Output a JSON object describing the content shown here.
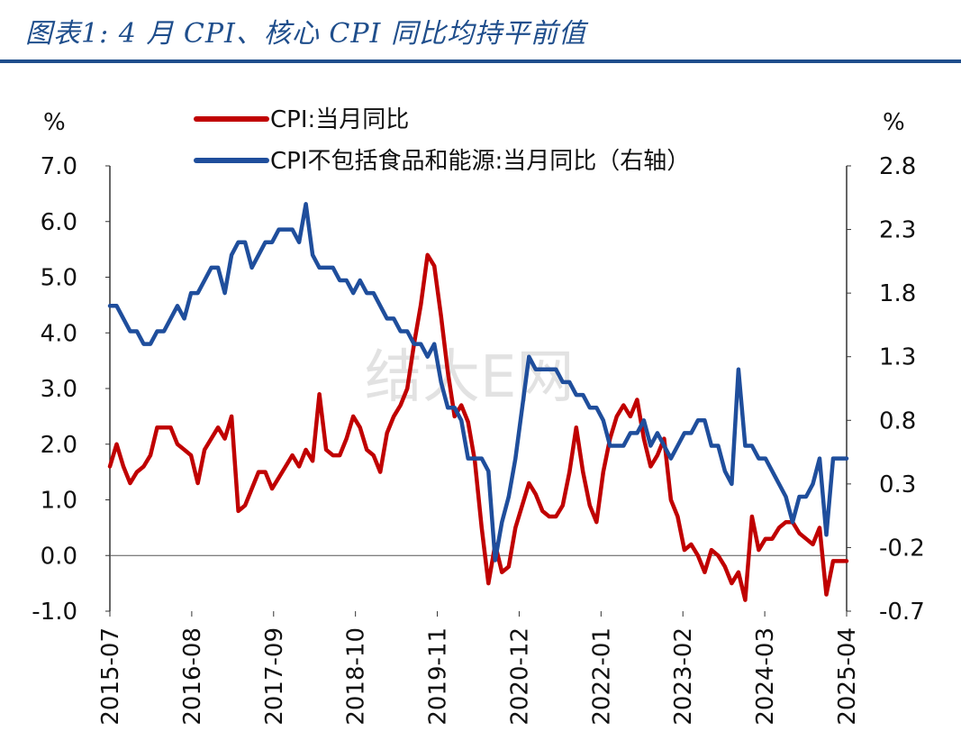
{
  "figure": {
    "title": "图表1:  4 月 CPI、核心 CPI 同比均持平前值",
    "watermark": "结大E网"
  },
  "colors": {
    "cpi": "#c00000",
    "core": "#1f4e9c",
    "title": "#1f4e8c"
  },
  "chart_data": {
    "type": "line",
    "left_axis": {
      "unit": "%",
      "ticks": [
        "7.0",
        "6.0",
        "5.0",
        "4.0",
        "3.0",
        "2.0",
        "1.0",
        "0.0",
        "-1.0"
      ],
      "ylim": [
        -1.0,
        7.0
      ]
    },
    "right_axis": {
      "unit": "%",
      "ticks": [
        "2.8",
        "2.3",
        "1.8",
        "1.3",
        "0.8",
        "0.3",
        "-0.2",
        "-0.7"
      ],
      "ylim": [
        -0.7,
        2.8
      ]
    },
    "x_ticks": [
      "2015-07",
      "2016-08",
      "2017-09",
      "2018-10",
      "2019-11",
      "2020-12",
      "2022-01",
      "2023-02",
      "2024-03",
      "2025-04"
    ],
    "x_start": "2015-07",
    "series": [
      {
        "name": "CPI:当月同比",
        "axis": "left",
        "values": [
          1.6,
          2.0,
          1.6,
          1.3,
          1.5,
          1.6,
          1.8,
          2.3,
          2.3,
          2.3,
          2.0,
          1.9,
          1.8,
          1.3,
          1.9,
          2.1,
          2.3,
          2.1,
          2.5,
          0.8,
          0.9,
          1.2,
          1.5,
          1.5,
          1.2,
          1.4,
          1.6,
          1.8,
          1.6,
          1.9,
          1.7,
          2.9,
          1.9,
          1.8,
          1.8,
          2.1,
          2.5,
          2.3,
          1.9,
          1.8,
          1.5,
          2.2,
          2.5,
          2.7,
          3.0,
          3.8,
          4.5,
          5.4,
          5.2,
          4.3,
          3.3,
          2.5,
          2.7,
          2.4,
          1.7,
          0.5,
          -0.5,
          0.2,
          -0.3,
          -0.2,
          0.5,
          0.9,
          1.3,
          1.1,
          0.8,
          0.7,
          0.7,
          0.9,
          1.5,
          2.3,
          1.5,
          0.9,
          0.6,
          1.5,
          2.1,
          2.5,
          2.7,
          2.5,
          2.8,
          2.1,
          1.6,
          1.8,
          2.1,
          1.0,
          0.7,
          0.1,
          0.2,
          0.0,
          -0.3,
          0.1,
          0.0,
          -0.2,
          -0.5,
          -0.3,
          -0.8,
          0.7,
          0.1,
          0.3,
          0.3,
          0.5,
          0.6,
          0.6,
          0.4,
          0.3,
          0.2,
          0.5,
          -0.7,
          -0.1,
          -0.1,
          -0.1
        ],
        "color": "#c00000"
      },
      {
        "name": "CPI不包括食品和能源:当月同比（右轴）",
        "axis": "right",
        "values": [
          1.7,
          1.7,
          1.6,
          1.5,
          1.5,
          1.4,
          1.4,
          1.5,
          1.5,
          1.6,
          1.7,
          1.6,
          1.8,
          1.8,
          1.9,
          2.0,
          2.0,
          1.8,
          2.1,
          2.2,
          2.2,
          2.0,
          2.1,
          2.2,
          2.2,
          2.3,
          2.3,
          2.3,
          2.2,
          2.5,
          2.1,
          2.0,
          2.0,
          2.0,
          1.9,
          1.9,
          1.8,
          1.9,
          1.8,
          1.8,
          1.7,
          1.6,
          1.6,
          1.5,
          1.5,
          1.4,
          1.4,
          1.3,
          1.4,
          1.1,
          0.9,
          0.9,
          0.8,
          0.5,
          0.5,
          0.5,
          0.4,
          -0.3,
          0.0,
          0.2,
          0.5,
          0.9,
          1.3,
          1.2,
          1.2,
          1.2,
          1.2,
          1.1,
          1.1,
          1.0,
          1.0,
          0.9,
          0.9,
          0.8,
          0.6,
          0.6,
          0.6,
          0.7,
          0.7,
          0.8,
          0.6,
          0.7,
          0.6,
          0.5,
          0.6,
          0.7,
          0.7,
          0.8,
          0.8,
          0.6,
          0.6,
          0.4,
          0.3,
          1.2,
          0.6,
          0.6,
          0.5,
          0.5,
          0.4,
          0.3,
          0.2,
          0.0,
          0.2,
          0.2,
          0.3,
          0.5,
          -0.1,
          0.5,
          0.5,
          0.5
        ],
        "color": "#1f4e9c"
      }
    ]
  }
}
